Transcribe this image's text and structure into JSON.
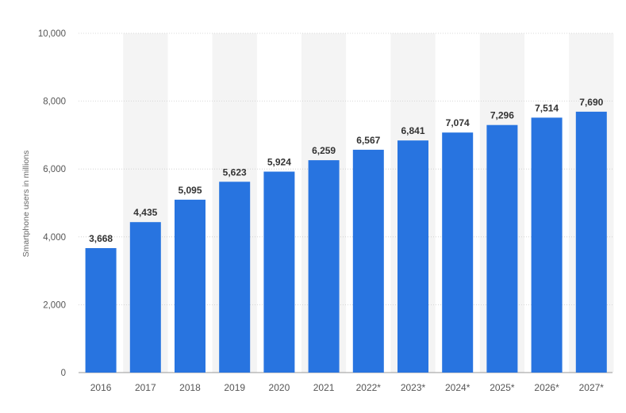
{
  "chart_data": {
    "type": "bar",
    "title": "",
    "xlabel": "",
    "ylabel": "Smartphone users in millions",
    "categories": [
      "2016",
      "2017",
      "2018",
      "2019",
      "2020",
      "2021",
      "2022*",
      "2023*",
      "2024*",
      "2025*",
      "2026*",
      "2027*"
    ],
    "values": [
      3668,
      4435,
      5095,
      5623,
      5924,
      6259,
      6567,
      6841,
      7074,
      7296,
      7514,
      7690
    ],
    "value_labels": [
      "3,668",
      "4,435",
      "5,095",
      "5,623",
      "5,924",
      "6,259",
      "6,567",
      "6,841",
      "7,074",
      "7,296",
      "7,514",
      "7,690"
    ],
    "ylim": [
      0,
      10000
    ],
    "yticks": [
      0,
      2000,
      4000,
      6000,
      8000,
      10000
    ],
    "ytick_labels": [
      "0",
      "2,000",
      "4,000",
      "6,000",
      "8,000",
      "10,000"
    ],
    "grid": true,
    "legend": "none",
    "colors": {
      "bar": "#2874E0",
      "band": "#F4F4F4",
      "grid": "#CCCCCC",
      "axis_text": "#555555",
      "value_text": "#333333"
    }
  }
}
